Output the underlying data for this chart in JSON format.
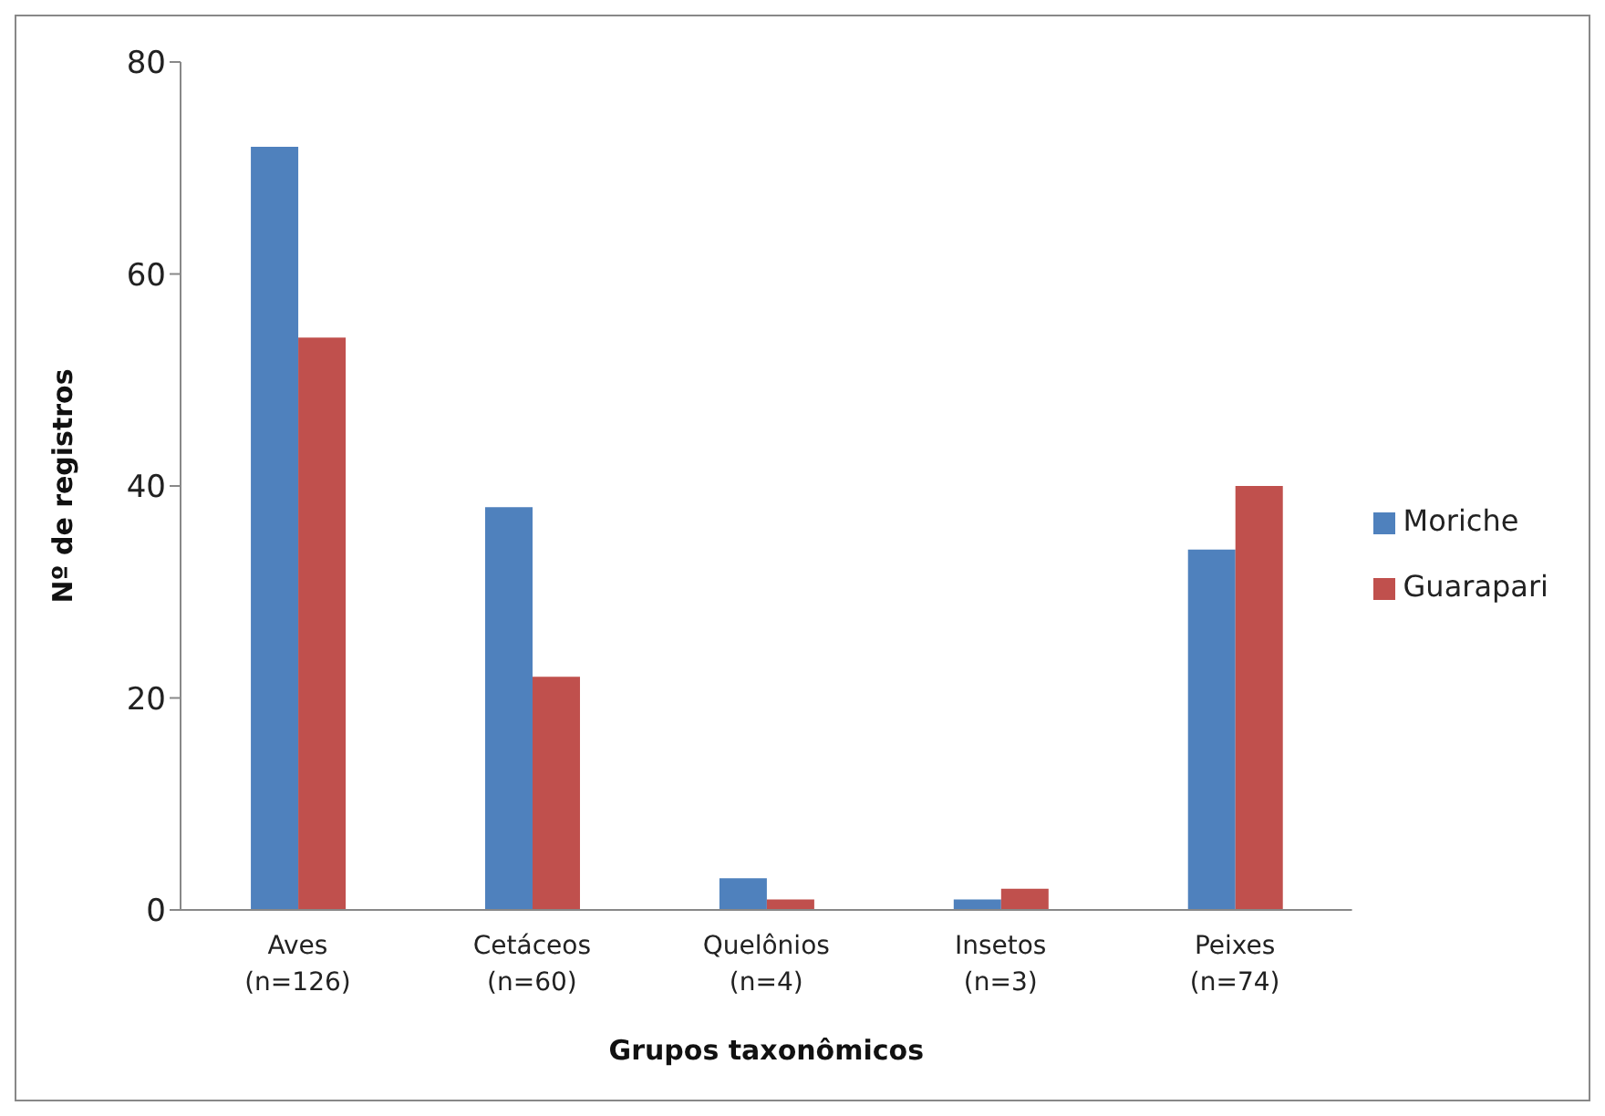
{
  "chart_data": {
    "type": "bar",
    "xlabel": "Grupos taxonômicos",
    "ylabel": "Nº de registros",
    "categories": [
      "Aves (n=126)",
      "Cetáceos (n=60)",
      "Quelônios (n=4)",
      "Insetos (n=3)",
      "Peixes (n=74)"
    ],
    "series": [
      {
        "name": "Moriche",
        "color": "#4f81bd",
        "values": [
          72,
          38,
          3,
          1,
          34
        ]
      },
      {
        "name": "Guarapari",
        "color": "#c0504d",
        "values": [
          54,
          22,
          1,
          2,
          40
        ]
      }
    ],
    "ylim": [
      0,
      80
    ],
    "yticks": [
      0,
      20,
      40,
      60,
      80
    ],
    "grid": false,
    "legend": "right"
  }
}
